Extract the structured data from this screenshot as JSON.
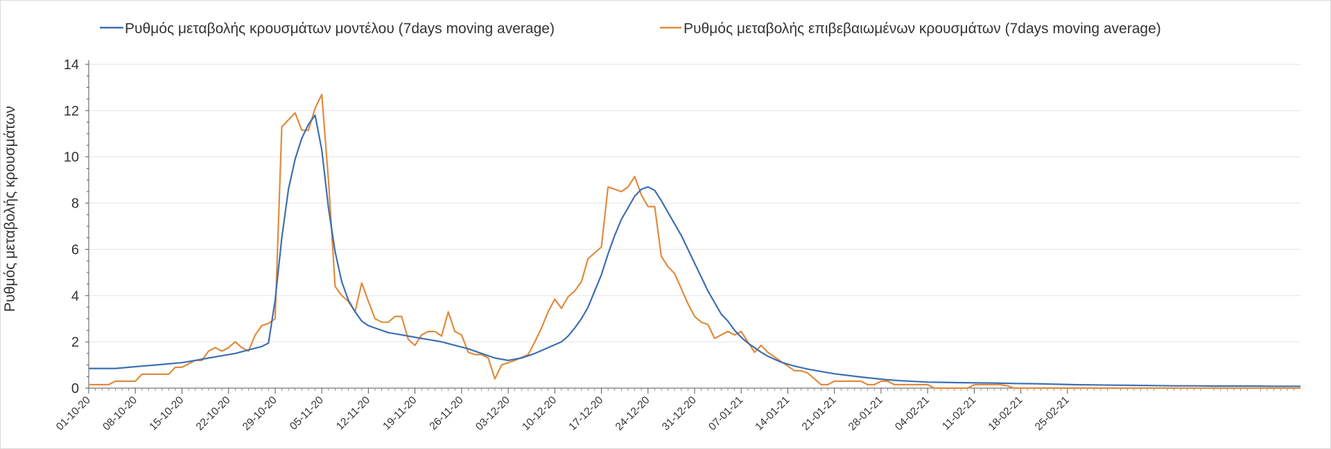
{
  "chart_data": {
    "type": "line",
    "title": "",
    "xlabel": "",
    "ylabel": "Ρυθμός μεταβολής κρουσμάτων",
    "ylim": [
      0,
      14
    ],
    "yticks": [
      0,
      2,
      4,
      6,
      8,
      10,
      12,
      14
    ],
    "x_start": "01-10-20",
    "x_end": "29-02-21",
    "tick_labels": [
      "01-10-20",
      "08-10-20",
      "15-10-20",
      "22-10-20",
      "29-10-20",
      "05-11-20",
      "12-11-20",
      "19-11-20",
      "26-11-20",
      "03-12-20",
      "10-12-20",
      "17-12-20",
      "24-12-20",
      "31-12-20",
      "07-01-21",
      "14-01-21",
      "21-01-21",
      "28-01-21",
      "04-02-21",
      "11-02-21",
      "18-02-21",
      "25-02-21"
    ],
    "grid": true,
    "legend_position": "top",
    "series": [
      {
        "name": "Ρυθμός μεταβολής κρουσμάτων μοντέλου (7days moving average)",
        "color": "#3b6fb3",
        "points": [
          [
            0,
            0.85
          ],
          [
            2,
            0.85
          ],
          [
            4,
            0.85
          ],
          [
            6,
            0.9
          ],
          [
            8,
            0.95
          ],
          [
            10,
            1.0
          ],
          [
            12,
            1.05
          ],
          [
            14,
            1.1
          ],
          [
            16,
            1.2
          ],
          [
            18,
            1.3
          ],
          [
            20,
            1.4
          ],
          [
            22,
            1.5
          ],
          [
            24,
            1.65
          ],
          [
            26,
            1.8
          ],
          [
            27,
            1.95
          ],
          [
            28,
            3.8
          ],
          [
            29,
            6.5
          ],
          [
            30,
            8.6
          ],
          [
            31,
            9.9
          ],
          [
            32,
            10.8
          ],
          [
            33,
            11.4
          ],
          [
            34,
            11.8
          ],
          [
            35,
            10.3
          ],
          [
            36,
            7.8
          ],
          [
            37,
            5.9
          ],
          [
            38,
            4.6
          ],
          [
            39,
            3.8
          ],
          [
            40,
            3.3
          ],
          [
            41,
            2.9
          ],
          [
            42,
            2.7
          ],
          [
            43,
            2.6
          ],
          [
            44,
            2.5
          ],
          [
            45,
            2.4
          ],
          [
            47,
            2.3
          ],
          [
            49,
            2.2
          ],
          [
            51,
            2.1
          ],
          [
            53,
            2.0
          ],
          [
            55,
            1.85
          ],
          [
            57,
            1.7
          ],
          [
            59,
            1.5
          ],
          [
            61,
            1.3
          ],
          [
            63,
            1.2
          ],
          [
            65,
            1.3
          ],
          [
            67,
            1.5
          ],
          [
            69,
            1.75
          ],
          [
            71,
            2.0
          ],
          [
            72,
            2.25
          ],
          [
            73,
            2.6
          ],
          [
            74,
            3.0
          ],
          [
            75,
            3.5
          ],
          [
            76,
            4.2
          ],
          [
            77,
            4.9
          ],
          [
            78,
            5.8
          ],
          [
            79,
            6.6
          ],
          [
            80,
            7.3
          ],
          [
            81,
            7.8
          ],
          [
            82,
            8.3
          ],
          [
            83,
            8.6
          ],
          [
            84,
            8.7
          ],
          [
            85,
            8.55
          ],
          [
            86,
            8.1
          ],
          [
            87,
            7.6
          ],
          [
            88,
            7.1
          ],
          [
            89,
            6.6
          ],
          [
            90,
            6.0
          ],
          [
            91,
            5.4
          ],
          [
            92,
            4.8
          ],
          [
            93,
            4.2
          ],
          [
            94,
            3.7
          ],
          [
            95,
            3.2
          ],
          [
            96,
            2.9
          ],
          [
            97,
            2.5
          ],
          [
            98,
            2.2
          ],
          [
            99,
            1.95
          ],
          [
            100,
            1.75
          ],
          [
            101,
            1.55
          ],
          [
            102,
            1.38
          ],
          [
            103,
            1.25
          ],
          [
            104,
            1.12
          ],
          [
            106,
            0.95
          ],
          [
            108,
            0.82
          ],
          [
            110,
            0.72
          ],
          [
            112,
            0.62
          ],
          [
            114,
            0.55
          ],
          [
            116,
            0.48
          ],
          [
            118,
            0.42
          ],
          [
            120,
            0.36
          ],
          [
            122,
            0.32
          ],
          [
            124,
            0.29
          ],
          [
            126,
            0.26
          ],
          [
            128,
            0.25
          ],
          [
            130,
            0.24
          ],
          [
            133,
            0.23
          ],
          [
            136,
            0.22
          ],
          [
            139,
            0.2
          ],
          [
            142,
            0.19
          ],
          [
            145,
            0.17
          ],
          [
            148,
            0.15
          ],
          [
            151,
            0.14
          ],
          [
            154,
            0.13
          ],
          [
            157,
            0.12
          ],
          [
            160,
            0.11
          ],
          [
            163,
            0.1
          ],
          [
            166,
            0.1
          ],
          [
            169,
            0.09
          ],
          [
            172,
            0.09
          ],
          [
            175,
            0.09
          ],
          [
            178,
            0.08
          ],
          [
            181,
            0.08
          ],
          [
            182,
            0.08
          ]
        ]
      },
      {
        "name": "Ρυθμός μεταβολής επιβεβαιωμένων κρουσμάτων (7days moving average)",
        "color": "#e08b3c",
        "points": [
          [
            0,
            0.15
          ],
          [
            3,
            0.15
          ],
          [
            4,
            0.3
          ],
          [
            7,
            0.3
          ],
          [
            8,
            0.6
          ],
          [
            12,
            0.6
          ],
          [
            13,
            0.9
          ],
          [
            14,
            0.9
          ],
          [
            16,
            1.2
          ],
          [
            17,
            1.2
          ],
          [
            18,
            1.6
          ],
          [
            19,
            1.75
          ],
          [
            20,
            1.6
          ],
          [
            21,
            1.75
          ],
          [
            22,
            2.0
          ],
          [
            23,
            1.75
          ],
          [
            24,
            1.6
          ],
          [
            25,
            2.3
          ],
          [
            26,
            2.7
          ],
          [
            27,
            2.8
          ],
          [
            28,
            3.0
          ],
          [
            29,
            11.3
          ],
          [
            30,
            11.6
          ],
          [
            31,
            11.9
          ],
          [
            32,
            11.15
          ],
          [
            33,
            11.15
          ],
          [
            34,
            12.1
          ],
          [
            35,
            12.7
          ],
          [
            36,
            9.0
          ],
          [
            37,
            4.4
          ],
          [
            38,
            4.0
          ],
          [
            39,
            3.75
          ],
          [
            40,
            3.3
          ],
          [
            41,
            4.55
          ],
          [
            42,
            3.75
          ],
          [
            43,
            3.0
          ],
          [
            44,
            2.85
          ],
          [
            45,
            2.85
          ],
          [
            46,
            3.1
          ],
          [
            47,
            3.1
          ],
          [
            48,
            2.1
          ],
          [
            49,
            1.85
          ],
          [
            50,
            2.3
          ],
          [
            51,
            2.45
          ],
          [
            52,
            2.45
          ],
          [
            53,
            2.25
          ],
          [
            54,
            3.3
          ],
          [
            55,
            2.45
          ],
          [
            56,
            2.3
          ],
          [
            57,
            1.55
          ],
          [
            58,
            1.45
          ],
          [
            59,
            1.45
          ],
          [
            60,
            1.3
          ],
          [
            61,
            0.4
          ],
          [
            62,
            1.0
          ],
          [
            64,
            1.2
          ],
          [
            66,
            1.45
          ],
          [
            67,
            2.0
          ],
          [
            68,
            2.6
          ],
          [
            69,
            3.3
          ],
          [
            70,
            3.85
          ],
          [
            71,
            3.45
          ],
          [
            72,
            3.95
          ],
          [
            73,
            4.2
          ],
          [
            74,
            4.6
          ],
          [
            75,
            5.6
          ],
          [
            76,
            5.85
          ],
          [
            77,
            6.1
          ],
          [
            78,
            8.7
          ],
          [
            79,
            8.6
          ],
          [
            80,
            8.5
          ],
          [
            81,
            8.7
          ],
          [
            82,
            9.15
          ],
          [
            83,
            8.35
          ],
          [
            84,
            7.85
          ],
          [
            85,
            7.85
          ],
          [
            86,
            5.7
          ],
          [
            87,
            5.25
          ],
          [
            88,
            4.95
          ],
          [
            89,
            4.3
          ],
          [
            90,
            3.65
          ],
          [
            91,
            3.1
          ],
          [
            92,
            2.85
          ],
          [
            93,
            2.75
          ],
          [
            94,
            2.15
          ],
          [
            95,
            2.3
          ],
          [
            96,
            2.45
          ],
          [
            97,
            2.3
          ],
          [
            98,
            2.45
          ],
          [
            99,
            2.0
          ],
          [
            100,
            1.55
          ],
          [
            101,
            1.85
          ],
          [
            102,
            1.55
          ],
          [
            104,
            1.15
          ],
          [
            106,
            0.75
          ],
          [
            107,
            0.75
          ],
          [
            108,
            0.65
          ],
          [
            109,
            0.4
          ],
          [
            110,
            0.15
          ],
          [
            111,
            0.15
          ],
          [
            112,
            0.3
          ],
          [
            115,
            0.3
          ],
          [
            116,
            0.3
          ],
          [
            117,
            0.15
          ],
          [
            118,
            0.15
          ],
          [
            119,
            0.3
          ],
          [
            120,
            0.3
          ],
          [
            121,
            0.15
          ],
          [
            125,
            0.15
          ],
          [
            126,
            0.15
          ],
          [
            127,
            0.0
          ],
          [
            132,
            0.0
          ],
          [
            133,
            0.15
          ],
          [
            137,
            0.15
          ],
          [
            138,
            0.1
          ],
          [
            139,
            0.0
          ],
          [
            182,
            0.0
          ]
        ]
      }
    ]
  }
}
